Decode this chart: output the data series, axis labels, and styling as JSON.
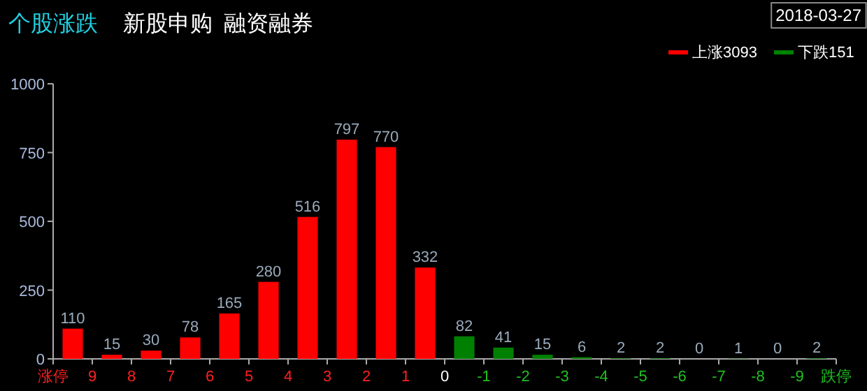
{
  "chart_data": {
    "type": "histogram",
    "title": "个股涨跌",
    "annotations": [
      "新股申购",
      "融资融券",
      "2018-03-27"
    ],
    "bins": [
      10,
      9,
      8,
      7,
      6,
      5,
      4,
      3,
      2,
      1,
      0,
      -1,
      -2,
      -3,
      -4,
      -5,
      -6,
      -7,
      -8,
      -9,
      -10
    ],
    "series": [
      {
        "name": "上涨3093",
        "color": "#ff0000",
        "values": [
          110,
          15,
          30,
          78,
          165,
          280,
          516,
          797,
          770,
          332,
          null,
          null,
          null,
          null,
          null,
          null,
          null,
          null,
          null,
          null
        ]
      },
      {
        "name": "下跌151",
        "color": "#008000",
        "values": [
          null,
          null,
          null,
          null,
          null,
          null,
          null,
          null,
          null,
          null,
          82,
          41,
          15,
          6,
          2,
          2,
          0,
          1,
          0,
          2
        ]
      }
    ],
    "xlim": [
      10,
      -10
    ],
    "xticks": [
      {
        "value": 10,
        "label": "涨停"
      },
      9,
      8,
      7,
      6,
      5,
      4,
      3,
      2,
      1,
      0,
      -1,
      -2,
      -3,
      -4,
      -5,
      -6,
      -7,
      -8,
      -9,
      {
        "value": -10,
        "label": "跌停"
      }
    ],
    "ylim": [
      0,
      1000
    ],
    "yticks": [
      0,
      250,
      500,
      750,
      1000
    ],
    "data_labels": true,
    "legend": "top right"
  }
}
